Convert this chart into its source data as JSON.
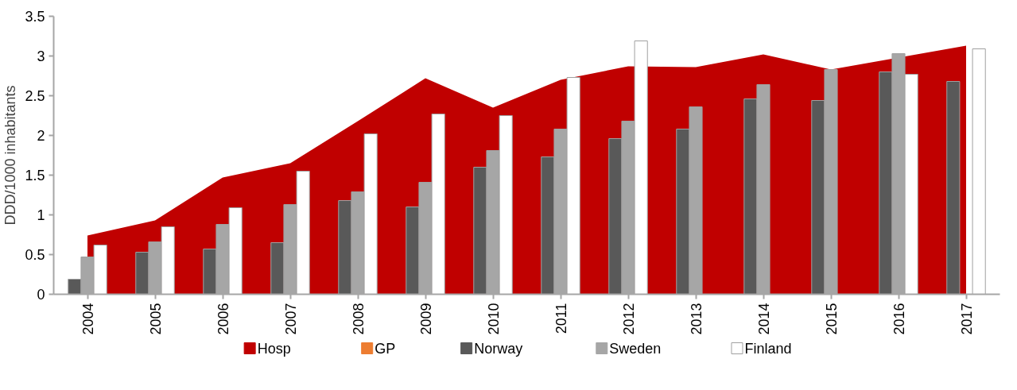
{
  "chart_data": {
    "type": "bar",
    "ylabel": "DDD/1000 inhabitants",
    "categories": [
      "2004",
      "2005",
      "2006",
      "2007",
      "2008",
      "2009",
      "2010",
      "2011",
      "2012",
      "2013",
      "2014",
      "2015",
      "2016",
      "2017"
    ],
    "ylim": [
      0,
      3.5
    ],
    "yticks": [
      0,
      0.5,
      1,
      1.5,
      2,
      2.5,
      3,
      3.5
    ],
    "grid": false,
    "legend": "bottom",
    "series": [
      {
        "name": "Hosp",
        "type": "area",
        "color": "#c00000",
        "values": [
          0.74,
          0.93,
          1.47,
          1.65,
          2.18,
          2.72,
          2.35,
          2.7,
          2.87,
          2.86,
          3.02,
          2.83,
          null,
          3.13
        ]
      },
      {
        "name": "GP",
        "type": "area",
        "color": "#ed7d31",
        "values": [
          null,
          null,
          null,
          null,
          null,
          null,
          null,
          null,
          null,
          null,
          null,
          null,
          null,
          null
        ]
      },
      {
        "name": "Norway",
        "color": "#595959",
        "values": [
          0.19,
          0.53,
          0.57,
          0.65,
          1.18,
          1.1,
          1.6,
          1.73,
          1.96,
          2.08,
          2.46,
          2.44,
          2.8,
          2.68
        ]
      },
      {
        "name": "Sweden",
        "color": "#a6a6a6",
        "values": [
          0.47,
          0.66,
          0.88,
          1.13,
          1.29,
          1.41,
          1.81,
          2.08,
          2.18,
          2.36,
          2.64,
          2.83,
          3.03,
          null
        ]
      },
      {
        "name": "Finland",
        "color": "#ffffff",
        "values": [
          0.62,
          0.85,
          1.09,
          1.55,
          2.02,
          2.27,
          2.25,
          2.73,
          3.19,
          null,
          null,
          null,
          2.77,
          3.09
        ]
      }
    ]
  }
}
